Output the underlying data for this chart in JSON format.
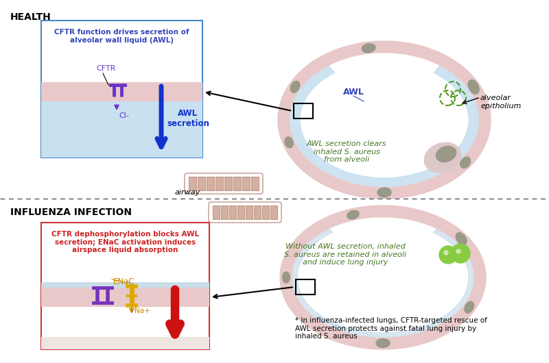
{
  "bg_color": "#ffffff",
  "title_health": "HEALTH",
  "title_influenza": "INFLUENZA INFECTION",
  "airway_label": "airway",
  "awl_label": "AWL",
  "alveolar_label": "alveolar\nepitholium",
  "health_box_text": "CFTR function drives secretion of\nalveolar wall liquid (AWL)",
  "health_box_cftr": "CFTR",
  "health_box_cl": "Cl-",
  "health_box_awl": "AWL\nsecretion",
  "health_green_text": "AWL secretion clears\ninhaled S. aureus\nfrom alveoli",
  "influenza_box_text": "CFTR dephosphorylation blocks AWL\nsecretion; ENaC activation induces\nairspace liquid absorption",
  "influenza_enac": "ENaC",
  "influenza_na": "Na+",
  "influenza_green_text": "Without AWL secretion, inhaled\nS. aureus are retained in alveoli\nand induce lung injury",
  "bottom_note": "* In influenza-infected lungs, CFTR-targeted rescue of\nAWL secretion protects against fatal lung injury by\ninhaled S. aureus",
  "wall_pink": "#e8c8c8",
  "wall_pink_dark": "#d4a8a8",
  "awl_blue": "#c8e0f0",
  "cell_gray": "#999988",
  "cell_body": "#ddd0cc",
  "bacteria_green": "#88cc44",
  "bacteria_edge": "#559922",
  "text_blue": "#3344bb",
  "text_purple": "#6633cc",
  "text_red": "#cc2222",
  "text_orange": "#cc8800",
  "text_green": "#447722",
  "inset_bg": "#ffffff",
  "inset_border_blue": "#4488cc",
  "inset_border_red": "#cc3333"
}
